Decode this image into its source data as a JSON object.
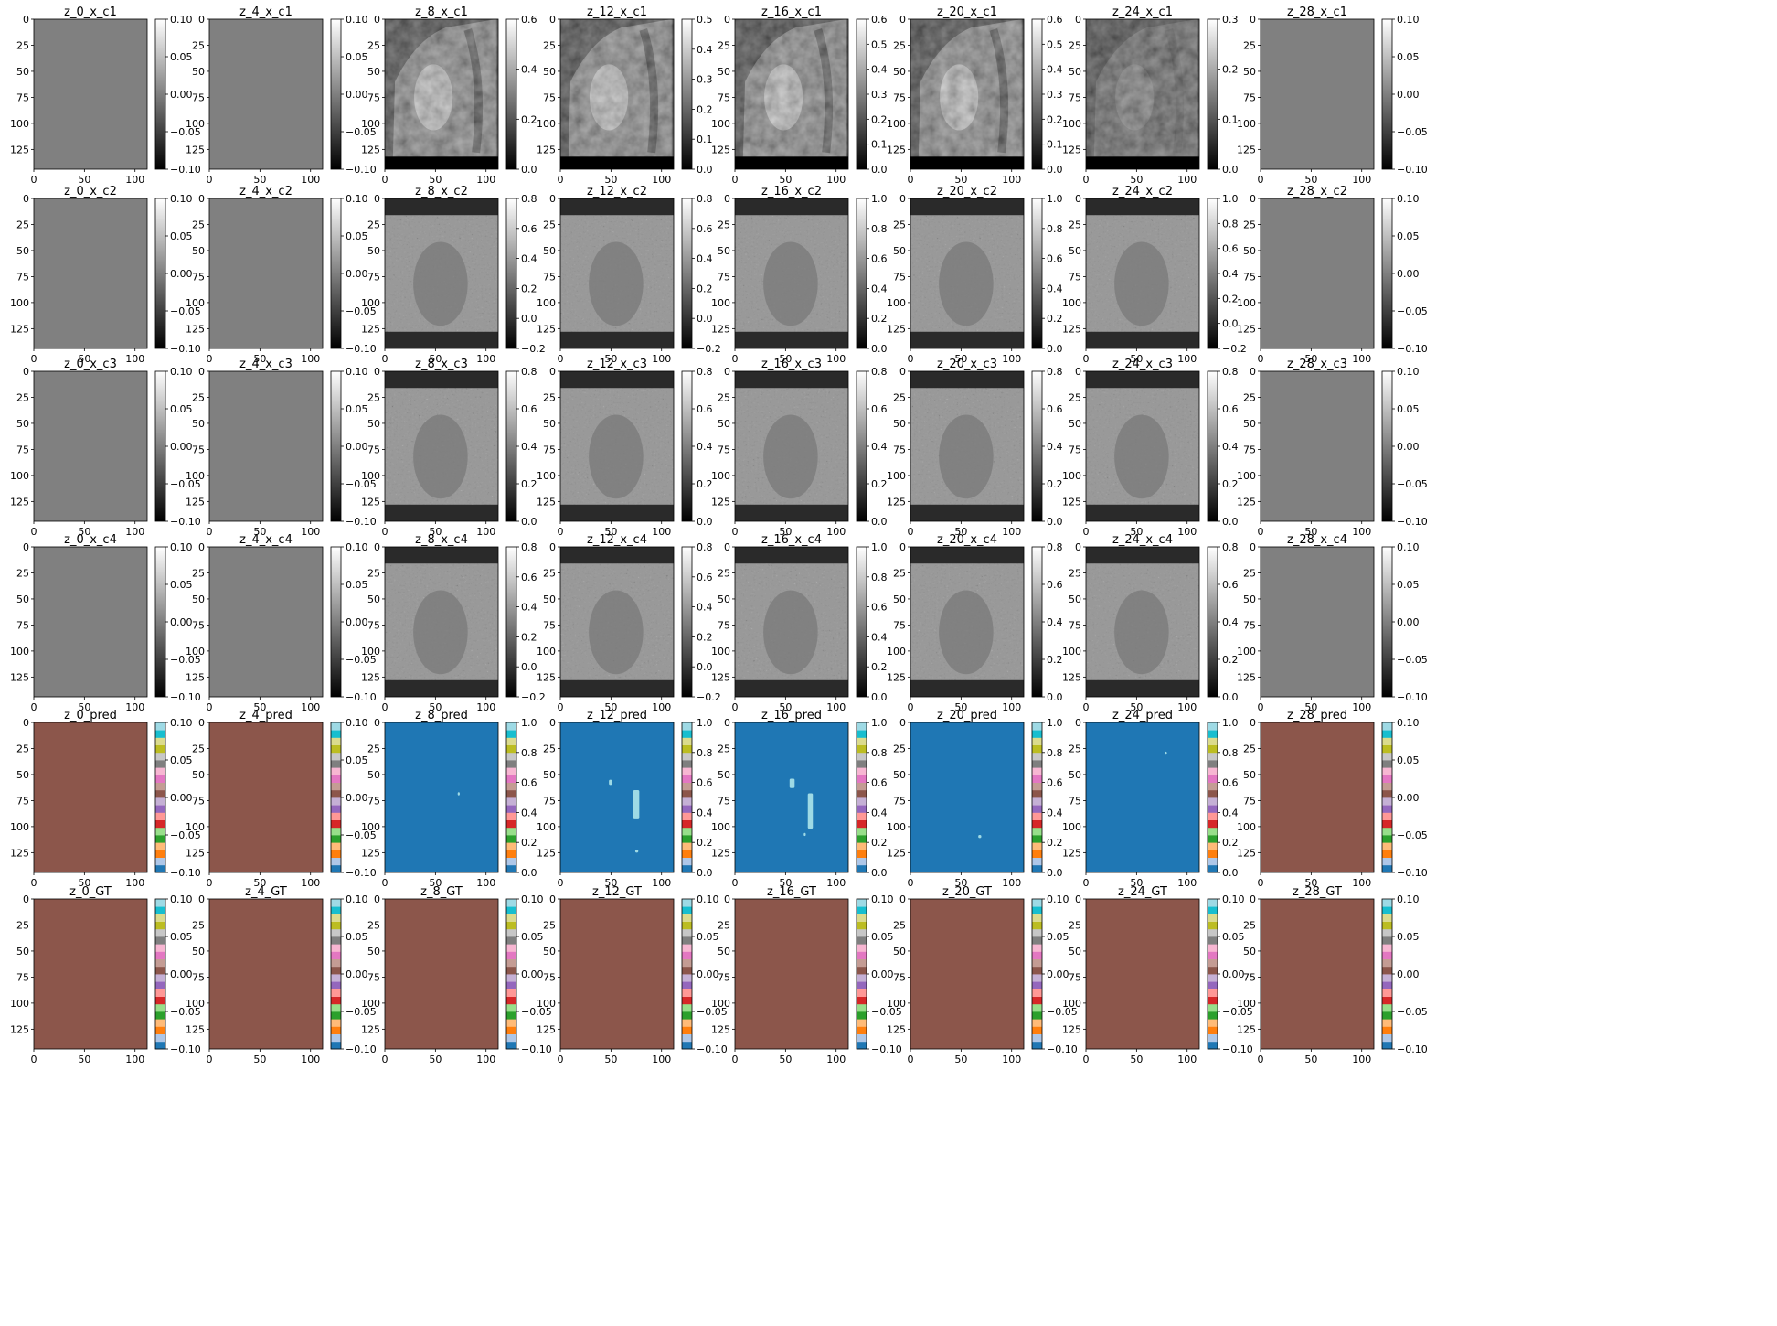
{
  "colors": {
    "tab20": [
      "#1f77b4",
      "#aec7e8",
      "#ff7f0e",
      "#ffbb78",
      "#2ca02c",
      "#98df8a",
      "#d62728",
      "#ff9896",
      "#9467bd",
      "#c5b0d5",
      "#8c564b",
      "#c49c94",
      "#e377c2",
      "#f7b6d2",
      "#7f7f7f",
      "#c7c7c7",
      "#bcbd22",
      "#dbdb8d",
      "#17becf",
      "#9edae5"
    ],
    "empty_gray": "#808080",
    "empty_brown": "#8c564b",
    "pred_blue": "#1f77b4",
    "pred_cyan": "#9edae5",
    "mri_band": "#2a2a2a"
  },
  "chart_data": {
    "type": "heatmap",
    "layout": "grid of 6 rows x 8 columns of image panels, each with a colorbar",
    "x_ticks": [
      "0",
      "50",
      "100"
    ],
    "y_ticks": [
      "0",
      "25",
      "50",
      "75",
      "100",
      "125"
    ],
    "image_shape": [
      144,
      112
    ],
    "rows": [
      {
        "name": "x_c1",
        "cmap": "gray",
        "panels": [
          {
            "title": "z_0_x_c1",
            "content": "empty",
            "cbar": [
              "0.10",
              "0.05",
              "0.00",
              "−0.05",
              "−0.10"
            ]
          },
          {
            "title": "z_4_x_c1",
            "content": "empty",
            "cbar": [
              "0.10",
              "0.05",
              "0.00",
              "−0.05",
              "−0.10"
            ]
          },
          {
            "title": "z_8_x_c1",
            "content": "mri",
            "cbar": [
              "0.6",
              "0.4",
              "0.2",
              "0.0"
            ]
          },
          {
            "title": "z_12_x_c1",
            "content": "mri",
            "cbar": [
              "0.5",
              "0.4",
              "0.3",
              "0.2",
              "0.1",
              "0.0"
            ]
          },
          {
            "title": "z_16_x_c1",
            "content": "mri",
            "cbar": [
              "0.6",
              "0.5",
              "0.4",
              "0.3",
              "0.2",
              "0.1",
              "0.0"
            ]
          },
          {
            "title": "z_20_x_c1",
            "content": "mri",
            "cbar": [
              "0.6",
              "0.5",
              "0.4",
              "0.3",
              "0.2",
              "0.1",
              "0.0"
            ]
          },
          {
            "title": "z_24_x_c1",
            "content": "mri-dark",
            "cbar": [
              "0.3",
              "0.2",
              "0.1",
              "0.0"
            ]
          },
          {
            "title": "z_28_x_c1",
            "content": "empty",
            "cbar": [
              "0.10",
              "0.05",
              "0.00",
              "−0.05",
              "−0.10"
            ]
          }
        ]
      },
      {
        "name": "x_c2",
        "cmap": "gray",
        "panels": [
          {
            "title": "z_0_x_c2",
            "content": "empty",
            "cbar": [
              "0.10",
              "0.05",
              "0.00",
              "−0.05",
              "−0.10"
            ]
          },
          {
            "title": "z_4_x_c2",
            "content": "empty",
            "cbar": [
              "0.10",
              "0.05",
              "0.00",
              "−0.05",
              "−0.10"
            ]
          },
          {
            "title": "z_8_x_c2",
            "content": "phase",
            "cbar": [
              "0.8",
              "0.6",
              "0.4",
              "0.2",
              "0.0",
              "−0.2"
            ]
          },
          {
            "title": "z_12_x_c2",
            "content": "phase",
            "cbar": [
              "0.8",
              "0.6",
              "0.4",
              "0.2",
              "0.0",
              "−0.2"
            ]
          },
          {
            "title": "z_16_x_c2",
            "content": "phase",
            "cbar": [
              "1.0",
              "0.8",
              "0.6",
              "0.4",
              "0.2",
              "0.0"
            ]
          },
          {
            "title": "z_20_x_c2",
            "content": "phase",
            "cbar": [
              "1.0",
              "0.8",
              "0.6",
              "0.4",
              "0.2",
              "0.0"
            ]
          },
          {
            "title": "z_24_x_c2",
            "content": "phase",
            "cbar": [
              "1.0",
              "0.8",
              "0.6",
              "0.4",
              "0.2",
              "0.0",
              "−0.2"
            ]
          },
          {
            "title": "z_28_x_c2",
            "content": "empty",
            "cbar": [
              "0.10",
              "0.05",
              "0.00",
              "−0.05",
              "−0.10"
            ]
          }
        ]
      },
      {
        "name": "x_c3",
        "cmap": "gray",
        "panels": [
          {
            "title": "z_0_x_c3",
            "content": "empty",
            "cbar": [
              "0.10",
              "0.05",
              "0.00",
              "−0.05",
              "−0.10"
            ]
          },
          {
            "title": "z_4_x_c3",
            "content": "empty",
            "cbar": [
              "0.10",
              "0.05",
              "0.00",
              "−0.05",
              "−0.10"
            ]
          },
          {
            "title": "z_8_x_c3",
            "content": "phase",
            "cbar": [
              "0.8",
              "0.6",
              "0.4",
              "0.2",
              "0.0"
            ]
          },
          {
            "title": "z_12_x_c3",
            "content": "phase",
            "cbar": [
              "0.8",
              "0.6",
              "0.4",
              "0.2",
              "0.0"
            ]
          },
          {
            "title": "z_16_x_c3",
            "content": "phase",
            "cbar": [
              "0.8",
              "0.6",
              "0.4",
              "0.2",
              "0.0"
            ]
          },
          {
            "title": "z_20_x_c3",
            "content": "phase",
            "cbar": [
              "0.8",
              "0.6",
              "0.4",
              "0.2",
              "0.0"
            ]
          },
          {
            "title": "z_24_x_c3",
            "content": "phase",
            "cbar": [
              "0.8",
              "0.6",
              "0.4",
              "0.2",
              "0.0"
            ]
          },
          {
            "title": "z_28_x_c3",
            "content": "empty",
            "cbar": [
              "0.10",
              "0.05",
              "0.00",
              "−0.05",
              "−0.10"
            ]
          }
        ]
      },
      {
        "name": "x_c4",
        "cmap": "gray",
        "panels": [
          {
            "title": "z_0_x_c4",
            "content": "empty",
            "cbar": [
              "0.10",
              "0.05",
              "0.00",
              "−0.05",
              "−0.10"
            ]
          },
          {
            "title": "z_4_x_c4",
            "content": "empty",
            "cbar": [
              "0.10",
              "0.05",
              "0.00",
              "−0.05",
              "−0.10"
            ]
          },
          {
            "title": "z_8_x_c4",
            "content": "phase",
            "cbar": [
              "0.8",
              "0.6",
              "0.4",
              "0.2",
              "0.0",
              "−0.2"
            ]
          },
          {
            "title": "z_12_x_c4",
            "content": "phase",
            "cbar": [
              "0.8",
              "0.6",
              "0.4",
              "0.2",
              "0.0",
              "−0.2"
            ]
          },
          {
            "title": "z_16_x_c4",
            "content": "phase",
            "cbar": [
              "1.0",
              "0.8",
              "0.6",
              "0.4",
              "0.2",
              "0.0"
            ]
          },
          {
            "title": "z_20_x_c4",
            "content": "phase",
            "cbar": [
              "0.8",
              "0.6",
              "0.4",
              "0.2",
              "0.0"
            ]
          },
          {
            "title": "z_24_x_c4",
            "content": "phase",
            "cbar": [
              "0.8",
              "0.6",
              "0.4",
              "0.2",
              "0.0"
            ]
          },
          {
            "title": "z_28_x_c4",
            "content": "empty",
            "cbar": [
              "0.10",
              "0.05",
              "0.00",
              "−0.05",
              "−0.10"
            ]
          }
        ]
      },
      {
        "name": "pred",
        "cmap": "tab20",
        "panels": [
          {
            "title": "z_0_pred",
            "content": "brown",
            "cbar": [
              "0.10",
              "0.05",
              "0.00",
              "−0.05",
              "−0.10"
            ]
          },
          {
            "title": "z_4_pred",
            "content": "brown",
            "cbar": [
              "0.10",
              "0.05",
              "0.00",
              "−0.05",
              "−0.10"
            ]
          },
          {
            "title": "z_8_pred",
            "content": "pred",
            "cbar": [
              "1.0",
              "0.8",
              "0.6",
              "0.4",
              "0.2",
              "0.0"
            ],
            "blobs": [
              {
                "x": 72,
                "y": 67,
                "w": 2,
                "h": 3
              }
            ]
          },
          {
            "title": "z_12_pred",
            "content": "pred",
            "cbar": [
              "1.0",
              "0.8",
              "0.6",
              "0.4",
              "0.2",
              "0.0"
            ],
            "blobs": [
              {
                "x": 48,
                "y": 55,
                "w": 3,
                "h": 5
              },
              {
                "x": 72,
                "y": 65,
                "w": 6,
                "h": 28
              },
              {
                "x": 74,
                "y": 122,
                "w": 3,
                "h": 3
              }
            ]
          },
          {
            "title": "z_16_pred",
            "content": "pred",
            "cbar": [
              "1.0",
              "0.8",
              "0.6",
              "0.4",
              "0.2",
              "0.0"
            ],
            "blobs": [
              {
                "x": 54,
                "y": 54,
                "w": 5,
                "h": 9
              },
              {
                "x": 72,
                "y": 68,
                "w": 5,
                "h": 34
              },
              {
                "x": 68,
                "y": 106,
                "w": 2,
                "h": 3
              }
            ]
          },
          {
            "title": "z_20_pred",
            "content": "pred",
            "cbar": [
              "1.0",
              "0.8",
              "0.6",
              "0.4",
              "0.2",
              "0.0"
            ],
            "blobs": [
              {
                "x": 67,
                "y": 108,
                "w": 3,
                "h": 3
              }
            ]
          },
          {
            "title": "z_24_pred",
            "content": "pred",
            "cbar": [
              "1.0",
              "0.8",
              "0.6",
              "0.4",
              "0.2",
              "0.0"
            ],
            "blobs": [
              {
                "x": 78,
                "y": 28,
                "w": 2,
                "h": 3
              }
            ]
          },
          {
            "title": "z_28_pred",
            "content": "brown",
            "cbar": [
              "0.10",
              "0.05",
              "0.00",
              "−0.05",
              "−0.10"
            ]
          }
        ]
      },
      {
        "name": "GT",
        "cmap": "tab20",
        "panels": [
          {
            "title": "z_0_GT",
            "content": "brown",
            "cbar": [
              "0.10",
              "0.05",
              "0.00",
              "−0.05",
              "−0.10"
            ]
          },
          {
            "title": "z_4_GT",
            "content": "brown",
            "cbar": [
              "0.10",
              "0.05",
              "0.00",
              "−0.05",
              "−0.10"
            ]
          },
          {
            "title": "z_8_GT",
            "content": "brown",
            "cbar": [
              "0.10",
              "0.05",
              "0.00",
              "−0.05",
              "−0.10"
            ]
          },
          {
            "title": "z_12_GT",
            "content": "brown",
            "cbar": [
              "0.10",
              "0.05",
              "0.00",
              "−0.05",
              "−0.10"
            ]
          },
          {
            "title": "z_16_GT",
            "content": "brown",
            "cbar": [
              "0.10",
              "0.05",
              "0.00",
              "−0.05",
              "−0.10"
            ]
          },
          {
            "title": "z_20_GT",
            "content": "brown",
            "cbar": [
              "0.10",
              "0.05",
              "0.00",
              "−0.05",
              "−0.10"
            ]
          },
          {
            "title": "z_24_GT",
            "content": "brown",
            "cbar": [
              "0.10",
              "0.05",
              "0.00",
              "−0.05",
              "−0.10"
            ]
          },
          {
            "title": "z_28_GT",
            "content": "brown",
            "cbar": [
              "0.10",
              "0.05",
              "0.00",
              "−0.05",
              "−0.10"
            ]
          }
        ]
      }
    ]
  }
}
